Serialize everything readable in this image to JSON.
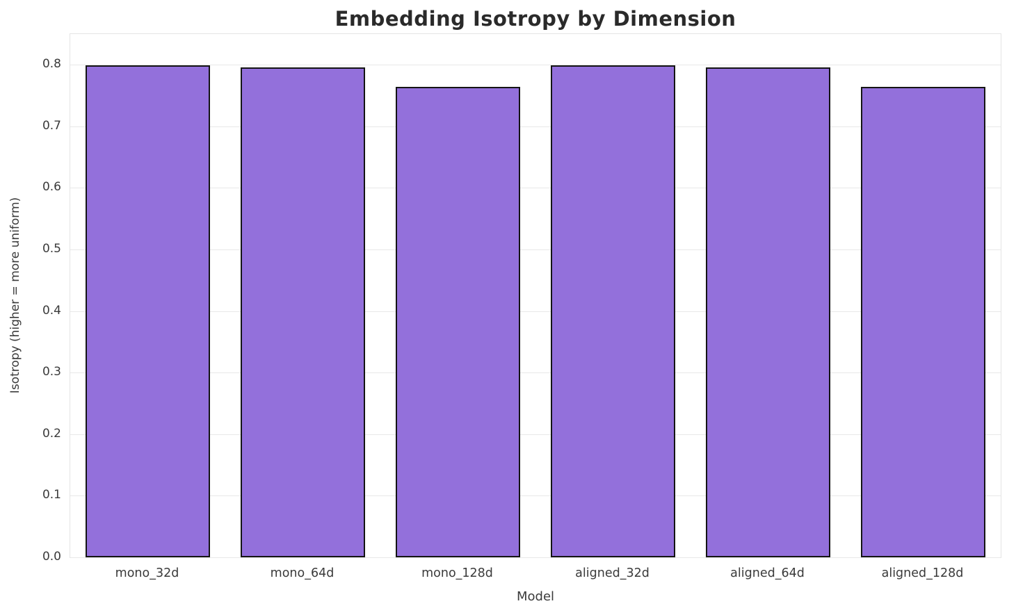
{
  "chart_data": {
    "type": "bar",
    "title": "Embedding Isotropy by Dimension",
    "xlabel": "Model",
    "ylabel": "Isotropy (higher = more uniform)",
    "categories": [
      "mono_32d",
      "mono_64d",
      "mono_128d",
      "aligned_32d",
      "aligned_64d",
      "aligned_128d"
    ],
    "values": [
      0.799,
      0.796,
      0.764,
      0.799,
      0.796,
      0.764
    ],
    "ylim": [
      0,
      0.85
    ],
    "yticks": [
      0.0,
      0.1,
      0.2,
      0.3,
      0.4,
      0.5,
      0.6,
      0.7,
      0.8
    ],
    "grid": true,
    "legend": "none",
    "bar_width_ratio": 0.8,
    "bar_color": "#9370DB",
    "bar_edge_color": "#141414",
    "grid_color": "#e8e8e8",
    "background_color": "#ffffff",
    "title_color": "#2a2a2a",
    "tick_color": "#3a3a3a"
  }
}
